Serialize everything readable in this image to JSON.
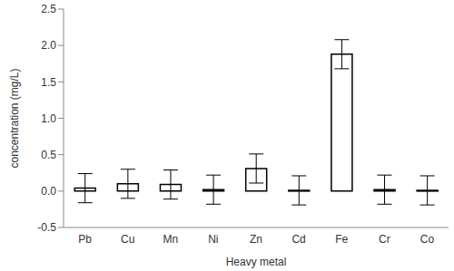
{
  "chart_data": {
    "type": "bar",
    "x_label": "Heavy metal",
    "y_label": "concentration (mg/L)",
    "categories": [
      "Pb",
      "Cu",
      "Mn",
      "Ni",
      "Zn",
      "Cd",
      "Fe",
      "Cr",
      "Co"
    ],
    "values": [
      0.04,
      0.1,
      0.09,
      0.02,
      0.31,
      0.01,
      1.88,
      0.02,
      0.01
    ],
    "errors": [
      0.2,
      0.2,
      0.2,
      0.2,
      0.2,
      0.2,
      0.2,
      0.2,
      0.2
    ],
    "color": "#ffffff",
    "ylim": [
      -0.5,
      2.5
    ],
    "yticks": [
      -0.5,
      {
        "value": 0,
        "label": "0.0"
      },
      0.5,
      {
        "value": 1,
        "label": "1.0"
      },
      1.5,
      {
        "value": 2,
        "label": "2.0"
      },
      2.5
    ],
    "grid": false
  }
}
